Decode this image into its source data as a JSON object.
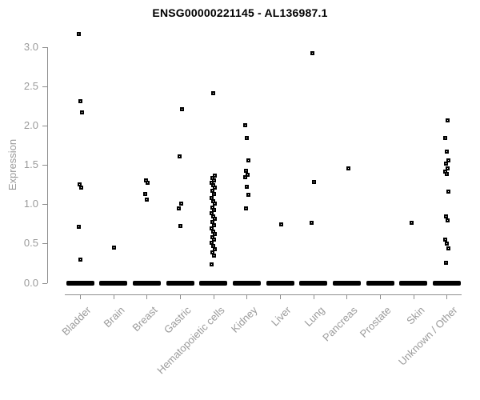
{
  "colors": {
    "title": "#000000",
    "axis": "#8f8f8f",
    "tick_text": "#9a9a9a",
    "points": "#000000"
  },
  "chart_data": {
    "type": "scatter",
    "subtype": "strip-plot",
    "title": "ENSG00000221145 - AL136987.1",
    "xlabel": "",
    "ylabel": "Expression",
    "ylim": [
      0.0,
      3.2
    ],
    "yticks": [
      0.0,
      0.5,
      1.0,
      1.5,
      2.0,
      2.5,
      3.0
    ],
    "grid": false,
    "legend": "none",
    "marker": "open-black-square",
    "categories": [
      "Bladder",
      "Brain",
      "Breast",
      "Gastric",
      "Hematopoietic cells",
      "Kidney",
      "Liver",
      "Lung",
      "Pancreas",
      "Prostate",
      "Skin",
      "Unknown / Other"
    ],
    "groups": [
      {
        "label": "Bladder",
        "values": [
          3.17,
          2.31,
          2.17,
          1.25,
          1.21,
          0.71,
          0.3
        ],
        "zero_cluster": true
      },
      {
        "label": "Brain",
        "values": [
          0.45
        ],
        "zero_cluster": true
      },
      {
        "label": "Breast",
        "values": [
          1.3,
          1.27,
          1.13,
          1.06
        ],
        "zero_cluster": true
      },
      {
        "label": "Gastric",
        "values": [
          2.21,
          1.61,
          1.01,
          0.95,
          0.72
        ],
        "zero_cluster": true
      },
      {
        "label": "Hematopoietic cells",
        "values": [
          2.41,
          1.36,
          1.33,
          1.3,
          1.27,
          1.24,
          1.21,
          1.17,
          1.13,
          1.08,
          1.04,
          1.01,
          0.96,
          0.93,
          0.89,
          0.85,
          0.81,
          0.77,
          0.73,
          0.69,
          0.65,
          0.62,
          0.58,
          0.55,
          0.51,
          0.47,
          0.43,
          0.39,
          0.35,
          0.23
        ],
        "zero_cluster": true
      },
      {
        "label": "Kidney",
        "values": [
          2.01,
          1.84,
          1.56,
          1.43,
          1.38,
          1.34,
          1.22,
          1.12,
          0.95
        ],
        "zero_cluster": true
      },
      {
        "label": "Liver",
        "values": [
          0.74
        ],
        "zero_cluster": true
      },
      {
        "label": "Lung",
        "values": [
          2.92,
          1.28,
          0.76
        ],
        "zero_cluster": true
      },
      {
        "label": "Pancreas",
        "values": [
          1.46
        ],
        "zero_cluster": true
      },
      {
        "label": "Prostate",
        "values": [],
        "zero_cluster": true
      },
      {
        "label": "Skin",
        "values": [
          0.76
        ],
        "zero_cluster": true
      },
      {
        "label": "Unknown / Other",
        "values": [
          2.07,
          1.84,
          1.67,
          1.56,
          1.52,
          1.46,
          1.42,
          1.39,
          1.16,
          0.85,
          0.79,
          0.55,
          0.5,
          0.44,
          0.25
        ],
        "zero_cluster": true
      }
    ]
  }
}
